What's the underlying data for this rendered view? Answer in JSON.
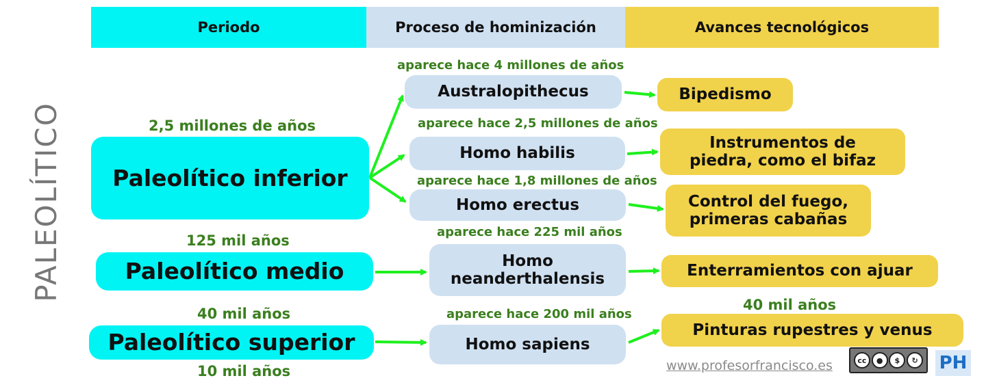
{
  "header": {
    "col1": "Periodo",
    "col2": "Proceso de hominización",
    "col3": "Avances tecnológicos",
    "colors": {
      "col1": "#00f4f4",
      "col2": "#cfe0f1",
      "col3": "#f1d24b"
    }
  },
  "vertical_title": "PALEOLÍTICO",
  "periods": [
    {
      "label": "Paleolítico inferior",
      "start": "2,5 millones de años"
    },
    {
      "label": "Paleolítico medio",
      "start": "125 mil años"
    },
    {
      "label": "Paleolítico superior",
      "start": "40 mil años",
      "end": "10 mil años"
    }
  ],
  "hominids": [
    {
      "name": "Australopithecus",
      "appears": "aparece hace 4 millones de años"
    },
    {
      "name": "Homo habilis",
      "appears": "aparece hace 2,5 millones de años"
    },
    {
      "name": "Homo erectus",
      "appears": "aparece hace 1,8 millones de años"
    },
    {
      "name_line1": "Homo",
      "name_line2": "neanderthalensis",
      "appears": "aparece hace 225 mil años"
    },
    {
      "name": "Homo sapiens",
      "appears": "aparece hace 200 mil años"
    }
  ],
  "advances": [
    {
      "label": "Bipedismo"
    },
    {
      "line1": "Instrumentos de",
      "line2": "piedra, como el bifaz"
    },
    {
      "line1": "Control del fuego,",
      "line2": "primeras cabañas"
    },
    {
      "label": "Enterramientos con ajuar"
    },
    {
      "label": "Pinturas rupestres y venus",
      "date": "40 mil años"
    }
  ],
  "footer": {
    "url": "www.profesorfrancisco.es",
    "license_icon": "cc-by-nc-sa-icon",
    "license_text_cc": "cc",
    "logo": "PH"
  },
  "colors": {
    "accent_green": "#3a7f1e",
    "arrow_green": "#1ef01e"
  }
}
